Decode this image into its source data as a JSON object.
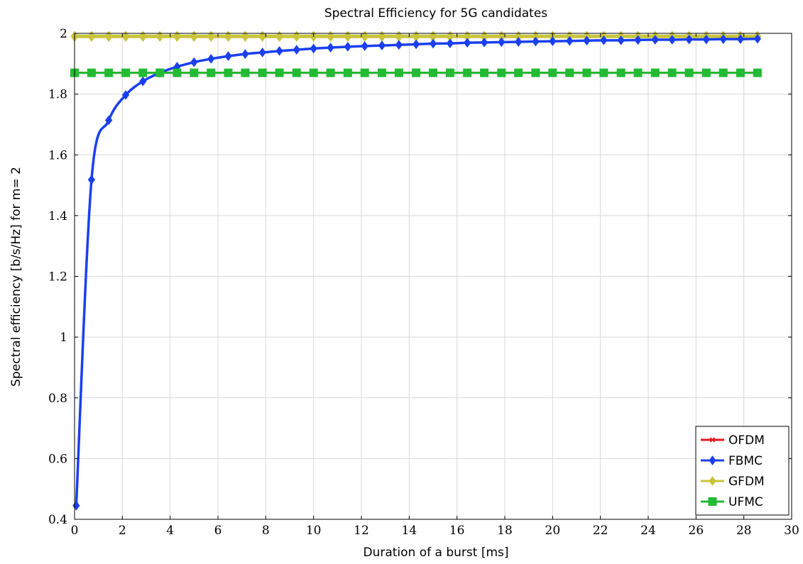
{
  "chart_data": {
    "type": "line",
    "title": "Spectral Efficiency for 5G candidates",
    "xlabel": "Duration of a burst [ms]",
    "ylabel": "Spectral efficiency [b/s/Hz] for m= 2",
    "xlim": [
      0,
      30
    ],
    "ylim": [
      0.4,
      2
    ],
    "xticks": [
      0,
      2,
      4,
      6,
      8,
      10,
      12,
      14,
      16,
      18,
      20,
      22,
      24,
      26,
      28,
      30
    ],
    "yticks": [
      0.4,
      0.6,
      0.8,
      1,
      1.2,
      1.4,
      1.6,
      1.8,
      2
    ],
    "grid": true,
    "legend_position": "bottom-right",
    "series": [
      {
        "name": "OFDM",
        "color": "#e8141c",
        "marker": "cross",
        "x": [
          0,
          0.71,
          1.43,
          2.14,
          2.86,
          3.57,
          4.29,
          5,
          5.71,
          6.43,
          7.14,
          7.86,
          8.57,
          9.29,
          10,
          10.71,
          11.43,
          12.14,
          12.86,
          13.57,
          14.29,
          15,
          15.71,
          16.43,
          17.14,
          17.86,
          18.57,
          19.29,
          20,
          20.71,
          21.43,
          22.14,
          22.86,
          23.57,
          24.29,
          25,
          25.71,
          26.43,
          27.14,
          27.86,
          28.57
        ],
        "y": [
          1.87,
          1.87,
          1.87,
          1.87,
          1.87,
          1.87,
          1.87,
          1.87,
          1.87,
          1.87,
          1.87,
          1.87,
          1.87,
          1.87,
          1.87,
          1.87,
          1.87,
          1.87,
          1.87,
          1.87,
          1.87,
          1.87,
          1.87,
          1.87,
          1.87,
          1.87,
          1.87,
          1.87,
          1.87,
          1.87,
          1.87,
          1.87,
          1.87,
          1.87,
          1.87,
          1.87,
          1.87,
          1.87,
          1.87,
          1.87,
          1.87
        ]
      },
      {
        "name": "FBMC",
        "color": "#1a3ff0",
        "marker": "diamond",
        "x": [
          0.07,
          0.71,
          1.43,
          2.14,
          2.86,
          3.57,
          4.29,
          5,
          5.71,
          6.43,
          7.14,
          7.86,
          8.57,
          9.29,
          10,
          10.71,
          11.43,
          12.14,
          12.86,
          13.57,
          14.29,
          15,
          15.71,
          16.43,
          17.14,
          17.86,
          18.57,
          19.29,
          20,
          20.71,
          21.43,
          22.14,
          22.86,
          23.57,
          24.29,
          25,
          25.71,
          26.43,
          27.14,
          27.86,
          28.57
        ],
        "y": [
          0.445,
          1.518,
          1.714,
          1.797,
          1.842,
          1.87,
          1.89,
          1.905,
          1.916,
          1.925,
          1.932,
          1.937,
          1.942,
          1.946,
          1.95,
          1.953,
          1.956,
          1.958,
          1.96,
          1.962,
          1.964,
          1.966,
          1.967,
          1.969,
          1.97,
          1.971,
          1.972,
          1.973,
          1.974,
          1.975,
          1.976,
          1.977,
          1.977,
          1.978,
          1.979,
          1.979,
          1.98,
          1.98,
          1.981,
          1.981,
          1.982
        ]
      },
      {
        "name": "GFDM",
        "color": "#c8c43c",
        "marker": "diamond",
        "x": [
          0,
          0.71,
          1.43,
          2.14,
          2.86,
          3.57,
          4.29,
          5,
          5.71,
          6.43,
          7.14,
          7.86,
          8.57,
          9.29,
          10,
          10.71,
          11.43,
          12.14,
          12.86,
          13.57,
          14.29,
          15,
          15.71,
          16.43,
          17.14,
          17.86,
          18.57,
          19.29,
          20,
          20.71,
          21.43,
          22.14,
          22.86,
          23.57,
          24.29,
          25,
          25.71,
          26.43,
          27.14,
          27.86,
          28.57
        ],
        "y": [
          1.99,
          1.99,
          1.99,
          1.99,
          1.99,
          1.99,
          1.99,
          1.99,
          1.99,
          1.99,
          1.99,
          1.99,
          1.99,
          1.99,
          1.99,
          1.99,
          1.99,
          1.99,
          1.99,
          1.99,
          1.99,
          1.99,
          1.99,
          1.99,
          1.99,
          1.99,
          1.99,
          1.99,
          1.99,
          1.99,
          1.99,
          1.99,
          1.99,
          1.99,
          1.99,
          1.99,
          1.99,
          1.99,
          1.99,
          1.99,
          1.99
        ]
      },
      {
        "name": "UFMC",
        "color": "#22bb33",
        "marker": "square",
        "x": [
          0,
          0.71,
          1.43,
          2.14,
          2.86,
          3.57,
          4.29,
          5,
          5.71,
          6.43,
          7.14,
          7.86,
          8.57,
          9.29,
          10,
          10.71,
          11.43,
          12.14,
          12.86,
          13.57,
          14.29,
          15,
          15.71,
          16.43,
          17.14,
          17.86,
          18.57,
          19.29,
          20,
          20.71,
          21.43,
          22.14,
          22.86,
          23.57,
          24.29,
          25,
          25.71,
          26.43,
          27.14,
          27.86,
          28.57
        ],
        "y": [
          1.87,
          1.87,
          1.87,
          1.87,
          1.87,
          1.87,
          1.87,
          1.87,
          1.87,
          1.87,
          1.87,
          1.87,
          1.87,
          1.87,
          1.87,
          1.87,
          1.87,
          1.87,
          1.87,
          1.87,
          1.87,
          1.87,
          1.87,
          1.87,
          1.87,
          1.87,
          1.87,
          1.87,
          1.87,
          1.87,
          1.87,
          1.87,
          1.87,
          1.87,
          1.87,
          1.87,
          1.87,
          1.87,
          1.87,
          1.87,
          1.87
        ]
      }
    ]
  }
}
